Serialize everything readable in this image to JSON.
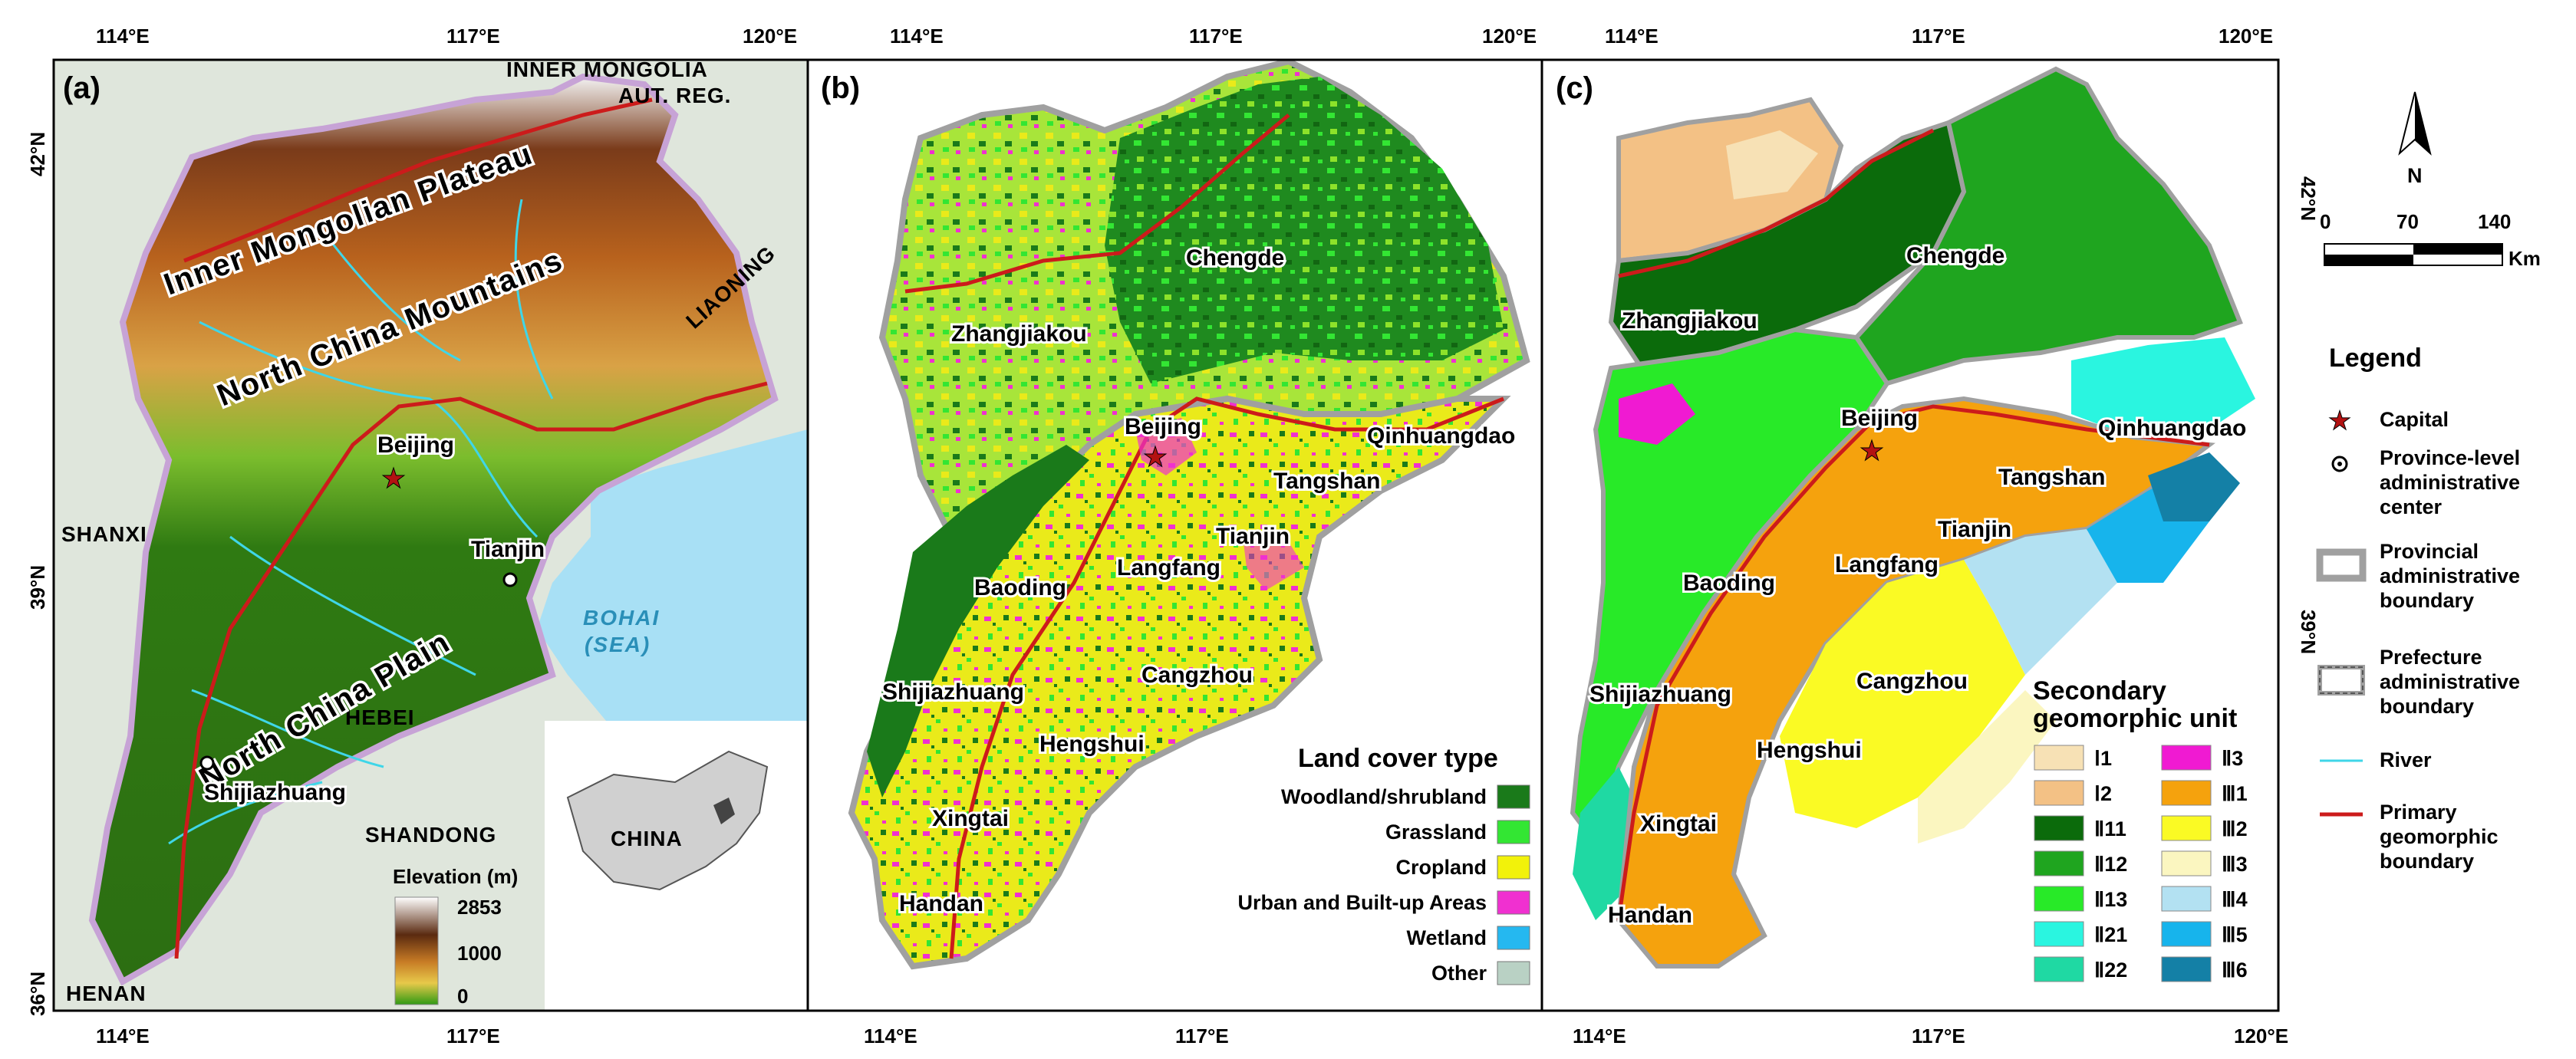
{
  "axis_ticks": {
    "lon": [
      "114°E",
      "117°E",
      "120°E"
    ],
    "lat": [
      "42°N",
      "39°N",
      "36°N"
    ]
  },
  "panels": {
    "a": {
      "letter": "(a)",
      "labels": {
        "inner_mongolia_line1": "INNER MONGOLIA",
        "inner_mongolia_line2": "AUT. REG.",
        "liaoning": "LIAONING",
        "shanxi": "SHANXI",
        "hebei": "HEBEI",
        "shandong": "SHANDONG",
        "henan": "HENAN",
        "bohai_line1": "BOHAI",
        "bohai_line2": "(SEA)",
        "plateau": "Inner Mongolian Plateau",
        "mountains": "North China Mountains",
        "plain": "North China Plain",
        "beijing": "Beijing",
        "tianjin": "Tianjin",
        "shijiazhuang": "Shijiazhuang"
      },
      "elevation": {
        "title": "Elevation (m)",
        "max": "2853",
        "mid": "1000",
        "min": "0"
      },
      "inset_label": "CHINA"
    },
    "b": {
      "letter": "(b)",
      "cities": {
        "zhangjiakou": "Zhangjiakou",
        "chengde": "Chengde",
        "beijing": "Beijing",
        "qinhuangdao": "Qinhuangdao",
        "tangshan": "Tangshan",
        "tianjin": "Tianjin",
        "langfang": "Langfang",
        "baoding": "Baoding",
        "cangzhou": "Cangzhou",
        "shijiazhuang": "Shijiazhuang",
        "hengshui": "Hengshui",
        "xingtai": "Xingtai",
        "handan": "Handan"
      },
      "legend_title": "Land cover type",
      "legend": [
        {
          "label": "Woodland/shrubland",
          "color": "#1a7a1a"
        },
        {
          "label": "Grassland",
          "color": "#33e633"
        },
        {
          "label": "Cropland",
          "color": "#f2f20a"
        },
        {
          "label": "Urban and Built-up Areas",
          "color": "#f030d0"
        },
        {
          "label": "Wetland",
          "color": "#25b8f0"
        },
        {
          "label": "Other",
          "color": "#b9d1c4"
        }
      ]
    },
    "c": {
      "letter": "(c)",
      "cities": {
        "chengde": "Chengde",
        "zhangjiakou": "Zhangjiakou",
        "beijing": "Beijing",
        "qinhuangdao": "Qinhuangdao",
        "tangshan": "Tangshan",
        "tianjin": "Tianjin",
        "baoding": "Baoding",
        "langfang": "Langfang",
        "cangzhou": "Cangzhou",
        "shijiazhuang": "Shijiazhuang",
        "hengshui": "Hengshui",
        "xingtai": "Xingtai",
        "handan": "Handan"
      },
      "legend_title_line1": "Secondary",
      "legend_title_line2": "geomorphic unit",
      "legend_left": [
        {
          "label": "Ⅰ1",
          "color": "#f7e1b5"
        },
        {
          "label": "Ⅰ2",
          "color": "#f3c185"
        },
        {
          "label": "Ⅱ11",
          "color": "#0b6b0b"
        },
        {
          "label": "Ⅱ12",
          "color": "#1fa51f"
        },
        {
          "label": "Ⅱ13",
          "color": "#28ea28"
        },
        {
          "label": "Ⅱ21",
          "color": "#2af5e0"
        },
        {
          "label": "Ⅱ22",
          "color": "#1fd9a3"
        }
      ],
      "legend_right": [
        {
          "label": "Ⅱ3",
          "color": "#f01ad2"
        },
        {
          "label": "Ⅲ1",
          "color": "#f5a20d"
        },
        {
          "label": "Ⅲ2",
          "color": "#fafa24"
        },
        {
          "label": "Ⅲ3",
          "color": "#fbf6c0"
        },
        {
          "label": "Ⅲ4",
          "color": "#b3e1f2"
        },
        {
          "label": "Ⅲ5",
          "color": "#17b4ec"
        },
        {
          "label": "Ⅲ6",
          "color": "#1480a6"
        }
      ]
    }
  },
  "right_legend": {
    "north": "N",
    "scale": {
      "t0": "0",
      "t1": "70",
      "t2": "140",
      "unit": "Km"
    },
    "title": "Legend",
    "items": [
      {
        "key": "capital",
        "lines": [
          "Capital"
        ]
      },
      {
        "key": "center",
        "lines": [
          "Province-level",
          "administrative",
          "center"
        ]
      },
      {
        "key": "province",
        "lines": [
          "Provincial",
          "administrative",
          "boundary"
        ]
      },
      {
        "key": "prefecture",
        "lines": [
          "Prefecture",
          "administrative",
          "boundary"
        ]
      },
      {
        "key": "river",
        "lines": [
          "River"
        ]
      },
      {
        "key": "primary",
        "lines": [
          "Primary",
          "geomorphic",
          "boundary"
        ]
      }
    ]
  }
}
